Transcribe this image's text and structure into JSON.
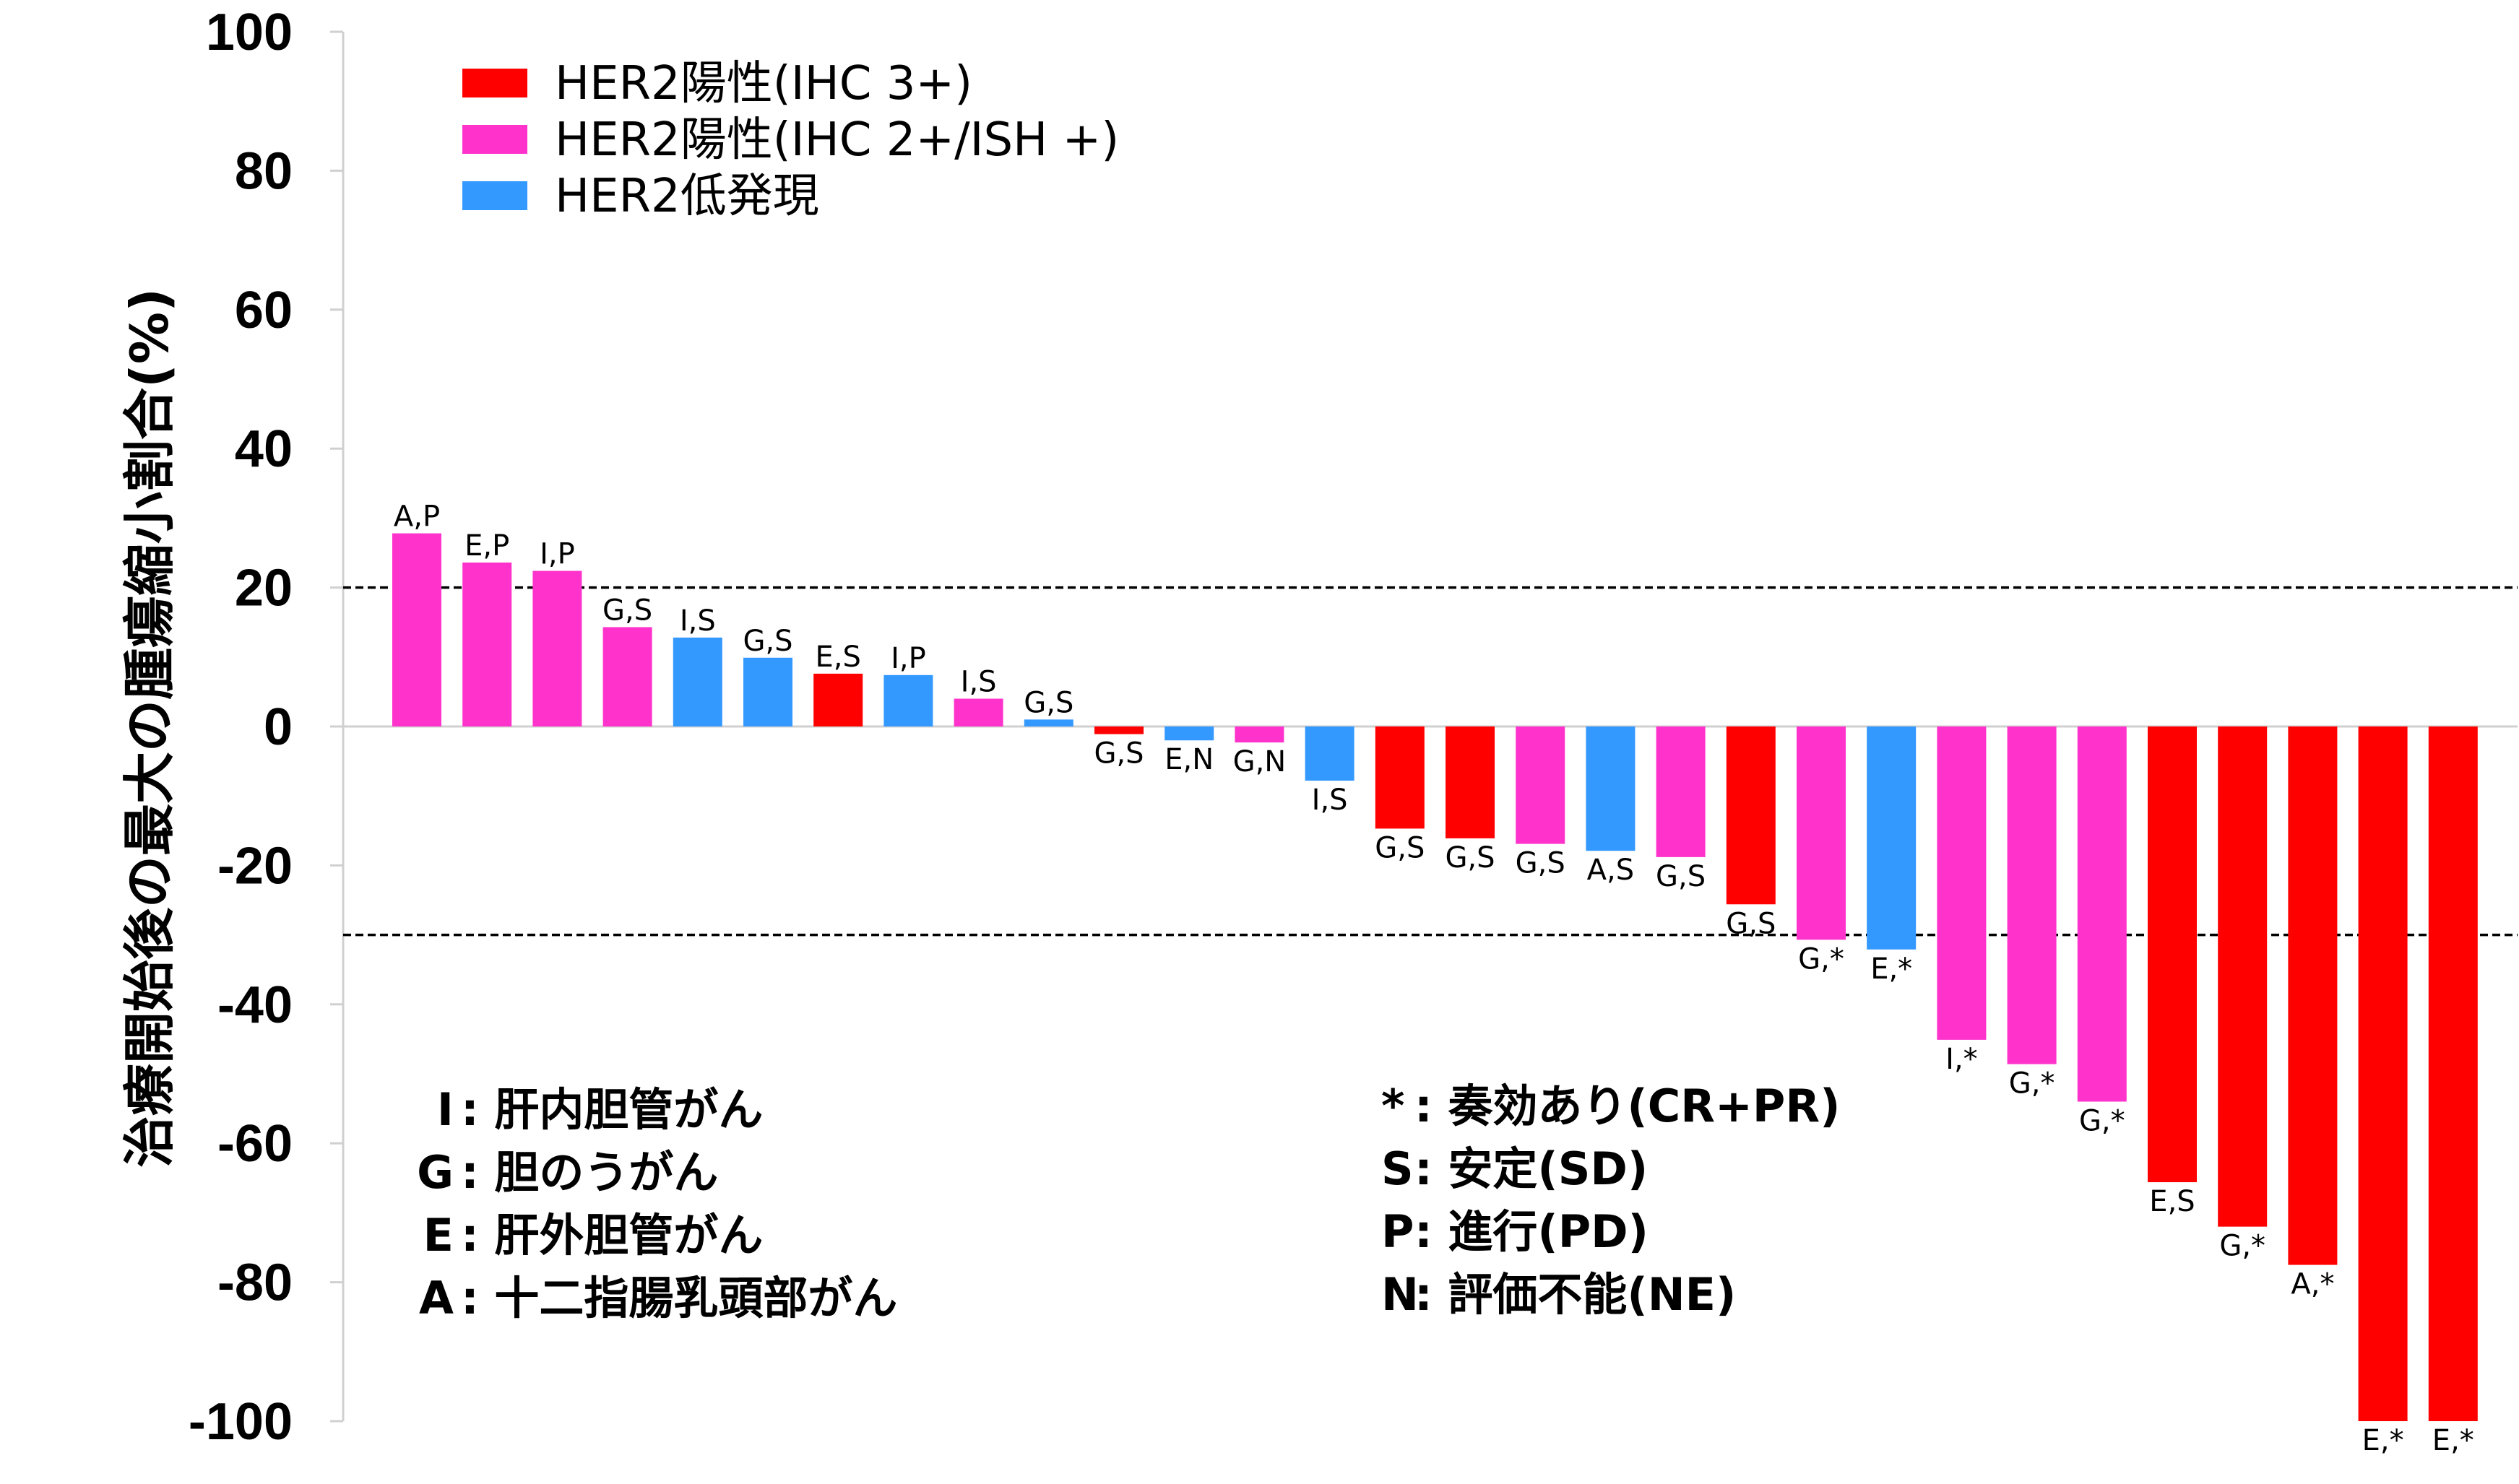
{
  "chart_data": {
    "type": "bar",
    "ylabel": "治療開始後の最大の腫瘍縮小割合(%)",
    "ylim": [
      -100,
      100
    ],
    "yticks": [
      100,
      80,
      60,
      40,
      20,
      0,
      -20,
      -40,
      -60,
      -80,
      -100
    ],
    "reference_lines": [
      20,
      -30
    ],
    "reference_line_style": "dashed",
    "grid": false,
    "legend_position": "top-left",
    "series": [
      {
        "name": "HER2陽性(IHC 3+)",
        "color": "#ff0000"
      },
      {
        "name": "HER2陽性(IHC 2+/ISH +)",
        "color": "#ff33cc"
      },
      {
        "name": "HER2低発現",
        "color": "#3399ff"
      }
    ],
    "bars": [
      {
        "label": "A,P",
        "value": 27.8,
        "series": 1
      },
      {
        "label": "E,P",
        "value": 23.6,
        "series": 1
      },
      {
        "label": "I,P",
        "value": 22.4,
        "series": 1
      },
      {
        "label": "G,S",
        "value": 14.3,
        "series": 1
      },
      {
        "label": "I,S",
        "value": 12.8,
        "series": 2
      },
      {
        "label": "G,S",
        "value": 9.9,
        "series": 2
      },
      {
        "label": "E,S",
        "value": 7.6,
        "series": 0
      },
      {
        "label": "I,P",
        "value": 7.4,
        "series": 2
      },
      {
        "label": "I,S",
        "value": 4.0,
        "series": 1
      },
      {
        "label": "G,S",
        "value": 1.0,
        "series": 2
      },
      {
        "label": "G,S",
        "value": -1.1,
        "series": 0
      },
      {
        "label": "E,N",
        "value": -2.0,
        "series": 2
      },
      {
        "label": "G,N",
        "value": -2.3,
        "series": 1
      },
      {
        "label": "I,S",
        "value": -7.8,
        "series": 2
      },
      {
        "label": "G,S",
        "value": -14.7,
        "series": 0
      },
      {
        "label": "G,S",
        "value": -16.1,
        "series": 0
      },
      {
        "label": "G,S",
        "value": -16.9,
        "series": 1
      },
      {
        "label": "A,S",
        "value": -17.9,
        "series": 2
      },
      {
        "label": "G,S",
        "value": -18.8,
        "series": 1
      },
      {
        "label": "G,S",
        "value": -25.6,
        "series": 0
      },
      {
        "label": "G,*",
        "value": -30.7,
        "series": 1
      },
      {
        "label": "E,*",
        "value": -32.1,
        "series": 2
      },
      {
        "label": "I,*",
        "value": -45.1,
        "series": 1
      },
      {
        "label": "G,*",
        "value": -48.6,
        "series": 1
      },
      {
        "label": "G,*",
        "value": -54.0,
        "series": 1
      },
      {
        "label": "E,S",
        "value": -65.6,
        "series": 0
      },
      {
        "label": "G,*",
        "value": -72.0,
        "series": 0
      },
      {
        "label": "A,*",
        "value": -77.5,
        "series": 0
      },
      {
        "label": "E,*",
        "value": -100.0,
        "series": 0
      },
      {
        "label": "E,*",
        "value": -100.0,
        "series": 0
      }
    ],
    "site_key": [
      {
        "code": "I",
        "text": ": 肝内胆管がん"
      },
      {
        "code": "G",
        "text": ": 胆のうがん"
      },
      {
        "code": "E",
        "text": ": 肝外胆管がん"
      },
      {
        "code": "A",
        "text": ": 十二指腸乳頭部がん"
      }
    ],
    "response_key": [
      {
        "code": "*",
        "text": " : 奏効あり(CR+PR)"
      },
      {
        "code": "S",
        "text": ": 安定(SD)"
      },
      {
        "code": "P",
        "text": ": 進行(PD)"
      },
      {
        "code": "N",
        "text": ": 評価不能(NE)"
      }
    ]
  }
}
